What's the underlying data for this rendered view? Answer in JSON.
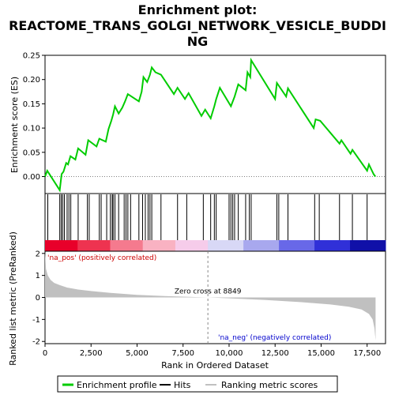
{
  "chart_data": [
    {
      "type": "line",
      "title_lines": [
        "Enrichment plot:",
        "REACTOME_TRANS_GOLGI_NETWORK_VESICLE_BUDDI",
        "NG"
      ],
      "ylabel": "Enrichment score (ES)",
      "xlim": [
        0,
        18500
      ],
      "ylim": [
        -0.035,
        0.25
      ],
      "yticks": [
        0.0,
        0.05,
        0.1,
        0.15,
        0.2,
        0.25
      ],
      "ytick_labels": [
        "0.00",
        "0.05",
        "0.10",
        "0.15",
        "0.20",
        "0.25"
      ],
      "series": [
        {
          "name": "Enrichment profile",
          "color": "#00cc00",
          "x": [
            0,
            120,
            800,
            900,
            1000,
            1150,
            1250,
            1380,
            1650,
            1800,
            2200,
            2350,
            2800,
            2950,
            3300,
            3450,
            3600,
            3700,
            3800,
            4000,
            4200,
            4350,
            4500,
            4700,
            5100,
            5250,
            5350,
            5550,
            5700,
            5800,
            6000,
            6300,
            7000,
            7200,
            7600,
            7800,
            8500,
            8700,
            9000,
            9200,
            9300,
            9500,
            10100,
            10300,
            10500,
            10900,
            11000,
            11150,
            11200,
            12500,
            12600,
            13100,
            13200,
            14600,
            14700,
            14950,
            16000,
            16100,
            16600,
            16700,
            17500,
            17600,
            17850,
            17950
          ],
          "y": [
            0.0,
            0.012,
            -0.028,
            0.005,
            0.01,
            0.028,
            0.025,
            0.042,
            0.035,
            0.058,
            0.045,
            0.075,
            0.062,
            0.078,
            0.072,
            0.098,
            0.115,
            0.128,
            0.145,
            0.13,
            0.142,
            0.155,
            0.17,
            0.165,
            0.155,
            0.175,
            0.205,
            0.195,
            0.21,
            0.225,
            0.215,
            0.21,
            0.17,
            0.183,
            0.16,
            0.172,
            0.125,
            0.138,
            0.12,
            0.145,
            0.16,
            0.183,
            0.145,
            0.165,
            0.19,
            0.178,
            0.215,
            0.205,
            0.24,
            0.16,
            0.193,
            0.165,
            0.182,
            0.1,
            0.118,
            0.115,
            0.068,
            0.075,
            0.047,
            0.055,
            0.012,
            0.025,
            0.005,
            0.0
          ]
        }
      ]
    },
    {
      "type": "hits",
      "xlim": [
        0,
        18500
      ],
      "hits": [
        150,
        800,
        880,
        960,
        1050,
        1200,
        1300,
        1400,
        1800,
        2300,
        2400,
        2950,
        3050,
        3350,
        3550,
        3650,
        3700,
        3800,
        4000,
        4300,
        4400,
        4500,
        4650,
        5100,
        5300,
        5450,
        5600,
        5700,
        5800,
        6300,
        7200,
        7700,
        8600,
        9000,
        9200,
        9300,
        10000,
        10100,
        10200,
        10300,
        10500,
        10900,
        11100,
        11200,
        12600,
        12700,
        13200,
        14650,
        14900,
        16000,
        16700,
        17500
      ],
      "band_colors": [
        "#e8002a",
        "#ee3350",
        "#f57a8e",
        "#f9b2c2",
        "#f6ccea",
        "#d8d8f6",
        "#a8a8ee",
        "#6868e8",
        "#3030d8",
        "#1010a8"
      ]
    },
    {
      "type": "area",
      "xlabel": "Rank in Ordered Dataset",
      "ylabel": "Ranked list metric (PreRanked)",
      "xlim": [
        0,
        18500
      ],
      "ylim": [
        -2.1,
        2.1
      ],
      "yticks": [
        -2,
        -1,
        0,
        1,
        2
      ],
      "xticks": [
        0,
        2500,
        5000,
        7500,
        10000,
        12500,
        15000,
        17500
      ],
      "xtick_labels": [
        "0",
        "2,500",
        "5,000",
        "7,500",
        "10,000",
        "12,500",
        "15,000",
        "17,500"
      ],
      "x": [
        0,
        50,
        150,
        300,
        500,
        800,
        1200,
        1800,
        2500,
        3500,
        5000,
        6500,
        8000,
        8849,
        10000,
        12000,
        14000,
        15500,
        16500,
        17200,
        17600,
        17800,
        17900,
        17960
      ],
      "values": [
        2.1,
        1.3,
        1.0,
        0.8,
        0.66,
        0.56,
        0.45,
        0.36,
        0.29,
        0.21,
        0.12,
        0.06,
        0.02,
        0.0,
        -0.04,
        -0.12,
        -0.22,
        -0.32,
        -0.42,
        -0.55,
        -0.75,
        -1.0,
        -1.4,
        -1.95
      ],
      "fill": "#c0c0c0",
      "zero_cross": 8849,
      "zero_cross_label": "Zero cross at 8849",
      "pos_label": "'na_pos' (positively correlated)",
      "neg_label": "'na_neg' (negatively correlated)",
      "pos_color": "#cc0000",
      "neg_color": "#0000cc"
    }
  ],
  "legend": {
    "items": [
      {
        "label": "Enrichment profile",
        "color": "#00cc00"
      },
      {
        "label": "Hits",
        "color": "#000000"
      },
      {
        "label": "Ranking metric scores",
        "color": "#c0c0c0"
      }
    ]
  }
}
